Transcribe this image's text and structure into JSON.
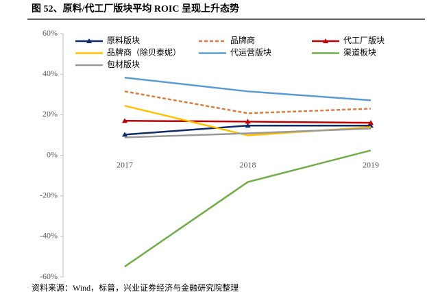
{
  "chart_data": {
    "type": "line",
    "title": "图 52、原料/代工厂版块平均 ROIC 呈现上升态势",
    "source": "资料来源：Wind，标普，兴业证券经济与金融研究院整理",
    "categories": [
      "2017",
      "2018",
      "2019"
    ],
    "series": [
      {
        "name": "原料版块",
        "color": "#0e2a66",
        "marker": "triangle",
        "values": [
          10.2,
          14.6,
          14.6
        ]
      },
      {
        "name": "品牌商",
        "color": "#e0793a",
        "dash": true,
        "values": [
          31.5,
          20.7,
          23
        ]
      },
      {
        "name": "代工厂版块",
        "color": "#c00000",
        "marker": "triangle",
        "values": [
          17,
          16.6,
          16
        ]
      },
      {
        "name": "品牌商（除贝泰妮）",
        "color": "#ffc000",
        "values": [
          24.4,
          9.8,
          13.9
        ]
      },
      {
        "name": "代运营版块",
        "color": "#5b9bd5",
        "values": [
          38.3,
          31.5,
          27.1
        ]
      },
      {
        "name": "渠道板块",
        "color": "#70ad47",
        "values": [
          -54.9,
          -13.2,
          2.4
        ]
      },
      {
        "name": "包材版块",
        "color": "#999999",
        "values": [
          8.8,
          10.8,
          13.2
        ]
      }
    ],
    "ylim": [
      -60,
      60
    ],
    "yticks": [
      {
        "value": -60,
        "label": "-60%"
      },
      {
        "value": -40,
        "label": "-40%"
      },
      {
        "value": -20,
        "label": "-20%"
      },
      {
        "value": 0,
        "label": "0%"
      },
      {
        "value": 20,
        "label": "20%"
      },
      {
        "value": 40,
        "label": "40%"
      },
      {
        "value": 60,
        "label": "60%"
      }
    ],
    "legend": "top-left"
  }
}
